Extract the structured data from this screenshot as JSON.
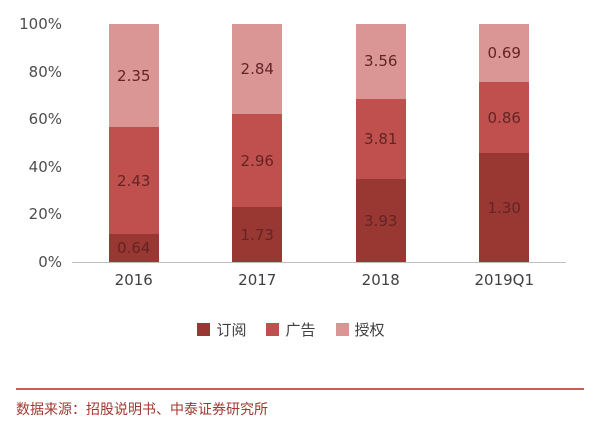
{
  "chart_data": {
    "type": "bar",
    "subtype": "stacked-100-percent",
    "categories": [
      "2016",
      "2017",
      "2018",
      "2019Q1"
    ],
    "series": [
      {
        "name": "订阅",
        "color": "#993733",
        "values": [
          0.64,
          1.73,
          3.93,
          1.3
        ]
      },
      {
        "name": "广告",
        "color": "#c0504d",
        "values": [
          2.43,
          2.96,
          3.81,
          0.86
        ]
      },
      {
        "name": "授权",
        "color": "#d99694",
        "values": [
          2.35,
          2.84,
          3.56,
          0.69
        ]
      }
    ],
    "y_ticks": [
      "100%",
      "80%",
      "60%",
      "40%",
      "20%",
      "0%"
    ],
    "ylim": [
      0,
      100
    ],
    "grid": false,
    "legend_position": "bottom",
    "value_label_color": "#632423",
    "axis_line_color": "#bfbfbf"
  },
  "footer": {
    "text": "数据来源：招股说明书、中泰证券研究所",
    "text_color": "#a03a31",
    "line_color": "#cf5b54"
  }
}
